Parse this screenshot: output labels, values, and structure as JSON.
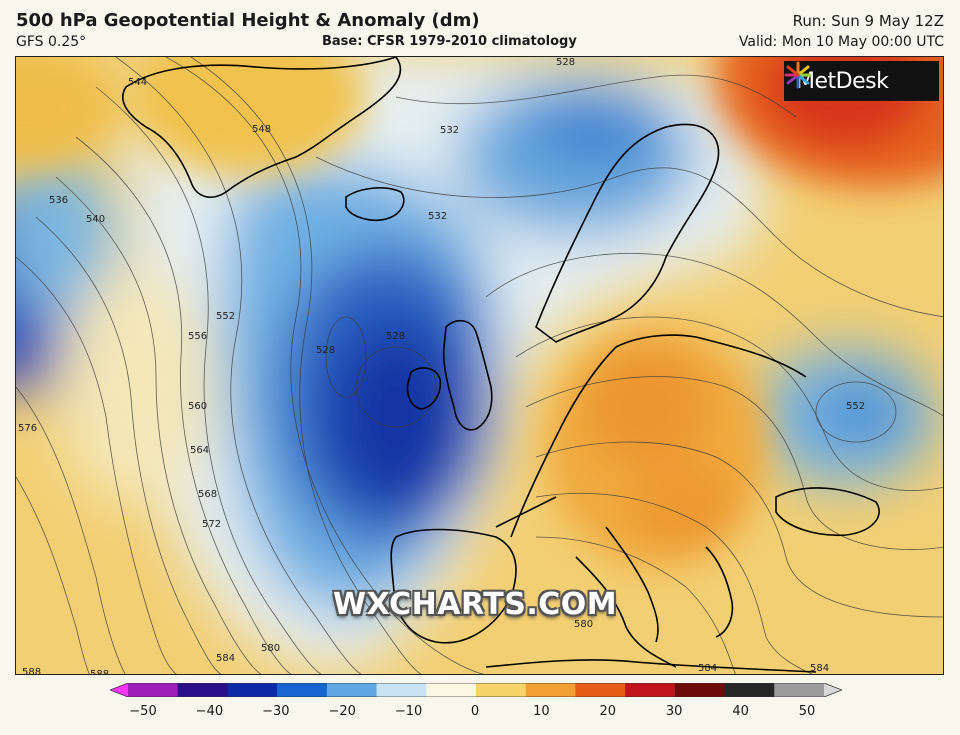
{
  "header": {
    "title": "500 hPa Geopotential Height & Anomaly (dm)",
    "model": "GFS 0.25°",
    "base": "Base: CFSR 1979-2010 climatology",
    "run": "Run: Sun 9 May 12Z",
    "valid": "Valid: Mon 10 May 00:00 UTC"
  },
  "logo": {
    "text": "MetDesk"
  },
  "watermark": "WXCHARTS.COM",
  "contour_labels": [
    "544",
    "548",
    "536",
    "540",
    "528",
    "532",
    "532",
    "528",
    "528",
    "552",
    "556",
    "560",
    "564",
    "568",
    "572",
    "576",
    "580",
    "584",
    "588",
    "588",
    "580",
    "584",
    "584",
    "568",
    "552"
  ],
  "colorbar": {
    "ticks": [
      "−50",
      "−40",
      "−30",
      "−20",
      "−10",
      "0",
      "10",
      "20",
      "30",
      "40",
      "50"
    ],
    "colors": [
      "#ff33ff",
      "#9b1fb8",
      "#2b0f8a",
      "#0c2aa8",
      "#1766d0",
      "#5fa8e3",
      "#c8e2f2",
      "#fbf7e3",
      "#f6d46a",
      "#f2a032",
      "#e85a18",
      "#c0151c",
      "#6e0c0c",
      "#262626",
      "#9c9c9c",
      "#d8d8d8"
    ]
  }
}
